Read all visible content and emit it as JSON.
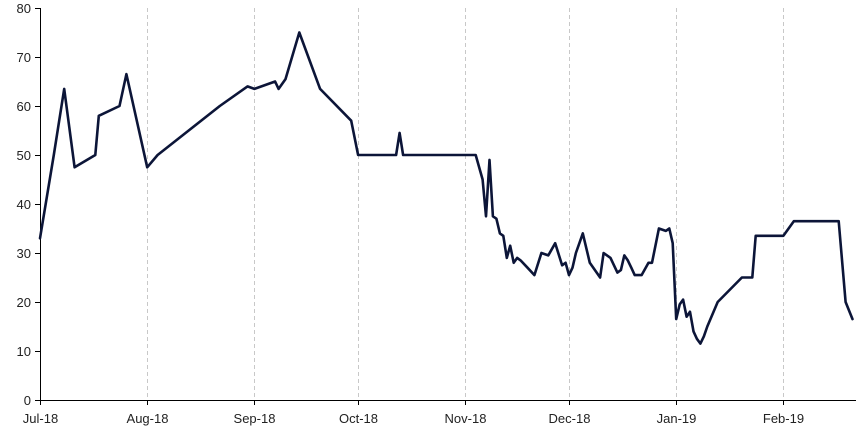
{
  "chart_data": {
    "type": "line",
    "title": "",
    "xlabel": "",
    "ylabel": "",
    "ylim": [
      0,
      80
    ],
    "y_ticks": [
      0,
      10,
      20,
      30,
      40,
      50,
      60,
      70,
      80
    ],
    "x_range": [
      "2018-07-01",
      "2019-02-22"
    ],
    "x_ticks": [
      {
        "date": "2018-07-01",
        "label": "Jul-18"
      },
      {
        "date": "2018-08-01",
        "label": "Aug-18"
      },
      {
        "date": "2018-09-01",
        "label": "Sep-18"
      },
      {
        "date": "2018-10-01",
        "label": "Oct-18"
      },
      {
        "date": "2018-11-01",
        "label": "Nov-18"
      },
      {
        "date": "2018-12-01",
        "label": "Dec-18"
      },
      {
        "date": "2019-01-01",
        "label": "Jan-19"
      },
      {
        "date": "2019-02-01",
        "label": "Feb-19"
      }
    ],
    "grid": "vertical dashed at month ticks",
    "legend": "none",
    "line_color": "#0c1538",
    "series": [
      {
        "x": [
          "2018-07-01",
          "2018-07-05",
          "2018-07-08",
          "2018-07-11",
          "2018-07-17",
          "2018-07-18",
          "2018-07-24",
          "2018-07-26",
          "2018-08-01",
          "2018-08-04",
          "2018-08-13",
          "2018-08-22",
          "2018-08-30",
          "2018-09-01",
          "2018-09-07",
          "2018-09-08",
          "2018-09-10",
          "2018-09-14",
          "2018-09-20",
          "2018-09-29",
          "2018-10-01",
          "2018-10-12",
          "2018-10-13",
          "2018-10-14",
          "2018-10-20",
          "2018-10-30",
          "2018-11-04",
          "2018-11-06",
          "2018-11-07",
          "2018-11-08",
          "2018-11-09",
          "2018-11-10",
          "2018-11-11",
          "2018-11-12",
          "2018-11-13",
          "2018-11-14",
          "2018-11-15",
          "2018-11-16",
          "2018-11-17",
          "2018-11-19",
          "2018-11-21",
          "2018-11-23",
          "2018-11-25",
          "2018-11-27",
          "2018-11-29",
          "2018-11-30",
          "2018-12-01",
          "2018-12-02",
          "2018-12-03",
          "2018-12-05",
          "2018-12-07",
          "2018-12-09",
          "2018-12-10",
          "2018-12-11",
          "2018-12-13",
          "2018-12-15",
          "2018-12-16",
          "2018-12-17",
          "2018-12-18",
          "2018-12-19",
          "2018-12-20",
          "2018-12-22",
          "2018-12-24",
          "2018-12-25",
          "2018-12-27",
          "2018-12-29",
          "2018-12-30",
          "2018-12-31",
          "2019-01-01",
          "2019-01-02",
          "2019-01-03",
          "2019-01-04",
          "2019-01-05",
          "2019-01-06",
          "2019-01-07",
          "2019-01-08",
          "2019-01-09",
          "2019-01-10",
          "2019-01-13",
          "2019-01-20",
          "2019-01-23",
          "2019-01-24",
          "2019-01-25",
          "2019-01-28",
          "2019-02-01",
          "2019-02-04",
          "2019-02-08",
          "2019-02-17",
          "2019-02-19",
          "2019-02-21"
        ],
        "y": [
          33,
          50,
          63.5,
          47.5,
          50,
          58,
          60,
          66.5,
          47.5,
          50,
          55,
          60,
          64,
          63.5,
          65,
          63.5,
          65.5,
          75,
          63.5,
          57,
          50,
          50,
          54.5,
          50,
          50,
          50,
          50,
          45,
          37.5,
          49,
          37.5,
          37,
          34,
          33.5,
          29,
          31.5,
          28,
          29,
          28.5,
          27,
          25.5,
          30,
          29.5,
          32,
          27.5,
          28,
          25.5,
          27,
          30,
          34,
          28,
          26,
          25,
          30,
          29,
          26,
          26.5,
          29.5,
          28.5,
          27,
          25.5,
          25.5,
          28,
          28,
          35,
          34.5,
          35,
          32,
          16.5,
          19.5,
          20.5,
          17,
          18,
          14,
          12.5,
          11.5,
          13,
          15,
          20,
          25,
          25,
          33.5,
          33.5,
          33.5,
          33.5,
          36.5,
          36.5,
          36.5,
          20,
          16.5
        ]
      }
    ]
  }
}
